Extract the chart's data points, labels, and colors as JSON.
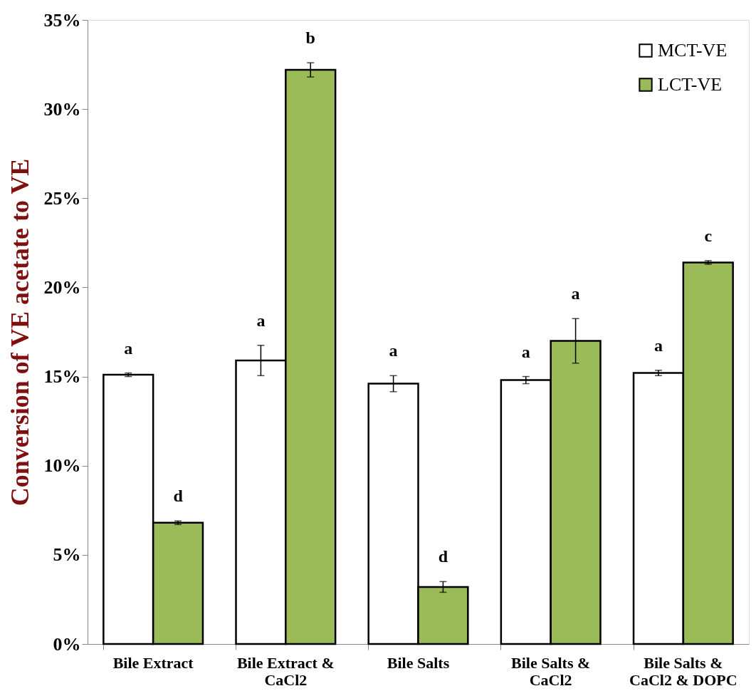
{
  "chart_data": {
    "type": "bar",
    "ylabel": "Conversion of VE acetate to VE",
    "categories": [
      "Bile Extract",
      "Bile Extract & CaCl2",
      "Bile Salts",
      "Bile Salts & CaCl2",
      "Bile Salts & CaCl2 & DOPC"
    ],
    "series": [
      {
        "name": "MCT-VE",
        "color": "#ffffff",
        "values": [
          15.1,
          15.9,
          14.6,
          14.8,
          15.2
        ],
        "errors": [
          0.1,
          0.85,
          0.45,
          0.2,
          0.15
        ]
      },
      {
        "name": "LCT-VE",
        "color": "#9bbb59",
        "values": [
          6.8,
          32.2,
          3.2,
          17.0,
          21.4
        ],
        "errors": [
          0.1,
          0.4,
          0.3,
          1.25,
          0.1
        ]
      }
    ],
    "ylim": [
      0,
      35
    ],
    "yticks": [
      {
        "value": 0,
        "label": "0%"
      },
      {
        "value": 5,
        "label": "5%"
      },
      {
        "value": 10,
        "label": "10%"
      },
      {
        "value": 15,
        "label": "15%"
      },
      {
        "value": 20,
        "label": "20%"
      },
      {
        "value": 25,
        "label": "25%"
      },
      {
        "value": 30,
        "label": "30%"
      },
      {
        "value": 35,
        "label": "35%"
      }
    ],
    "annotations": [
      "a",
      "d",
      "a",
      "b",
      "a",
      "d",
      "a",
      "a",
      "a",
      "c"
    ],
    "legend": "top right",
    "grid": false
  }
}
